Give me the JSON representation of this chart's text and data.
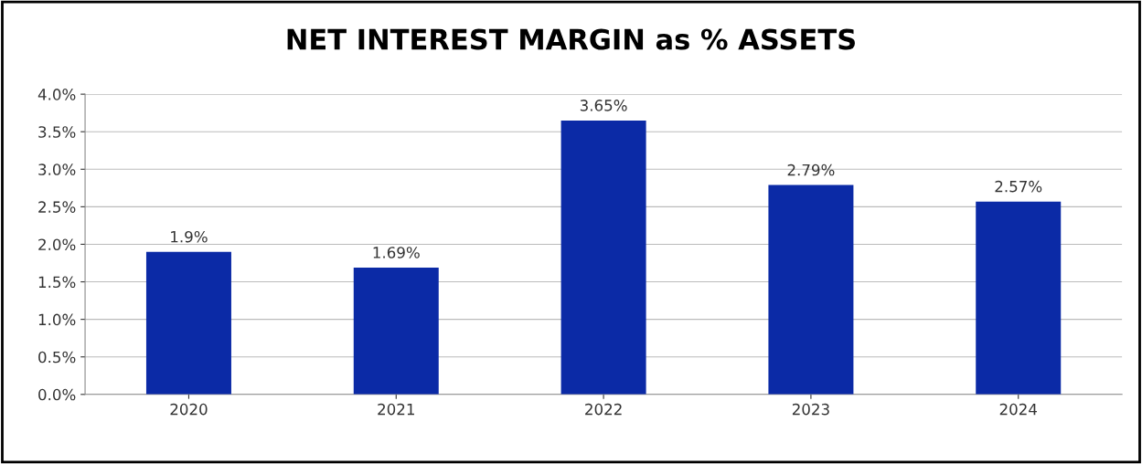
{
  "chart_data": {
    "type": "bar",
    "title": "NET INTEREST MARGIN as % ASSETS",
    "categories": [
      "2020",
      "2021",
      "2022",
      "2023",
      "2024"
    ],
    "values": [
      1.9,
      1.69,
      3.65,
      2.79,
      2.57
    ],
    "value_labels": [
      "1.9%",
      "1.69%",
      "3.65%",
      "2.79%",
      "2.57%"
    ],
    "color": "#0b2aa6",
    "ylim": [
      0,
      4
    ],
    "yticks": [
      {
        "value": 0,
        "label": "0.0%"
      },
      {
        "value": 0.5,
        "label": "0.5%"
      },
      {
        "value": 1,
        "label": "1.0%"
      },
      {
        "value": 1.5,
        "label": "1.5%"
      },
      {
        "value": 2,
        "label": "2.0%"
      },
      {
        "value": 2.5,
        "label": "2.5%"
      },
      {
        "value": 3,
        "label": "3.0%"
      },
      {
        "value": 3.5,
        "label": "3.5%"
      },
      {
        "value": 4,
        "label": "4.0%"
      }
    ],
    "grid": "y"
  }
}
